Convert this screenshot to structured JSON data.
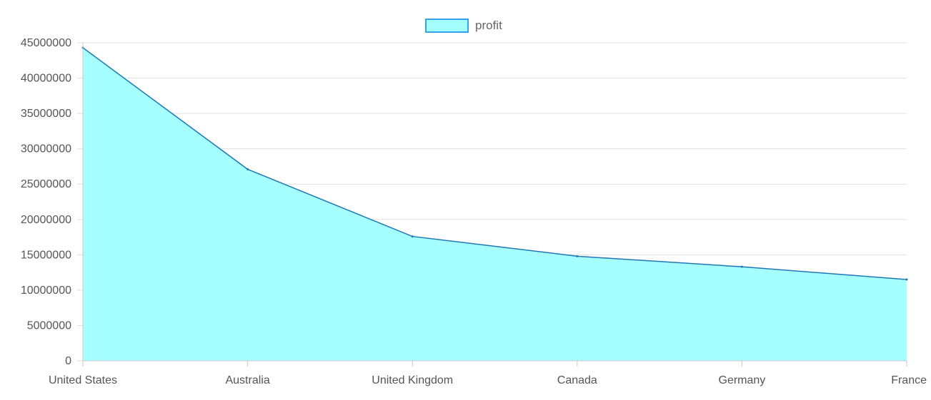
{
  "chart_data": {
    "type": "area",
    "categories": [
      "United States",
      "Australia",
      "United Kingdom",
      "Canada",
      "Germany",
      "France"
    ],
    "series": [
      {
        "name": "profit",
        "values": [
          44300000,
          27100000,
          17600000,
          14800000,
          13300000,
          11500000
        ]
      }
    ],
    "ylim": [
      0,
      45000000
    ],
    "yticks": [
      "0",
      "5000000",
      "10000000",
      "15000000",
      "20000000",
      "25000000",
      "30000000",
      "35000000",
      "40000000",
      "45000000"
    ],
    "grid": true,
    "legend": "top-center",
    "colors": {
      "fill": "#a6ffff",
      "line": "#1f77b4",
      "legend_border": "#36a2eb",
      "grid": "#e0e0e0",
      "axis": "#c8c8c8"
    }
  }
}
